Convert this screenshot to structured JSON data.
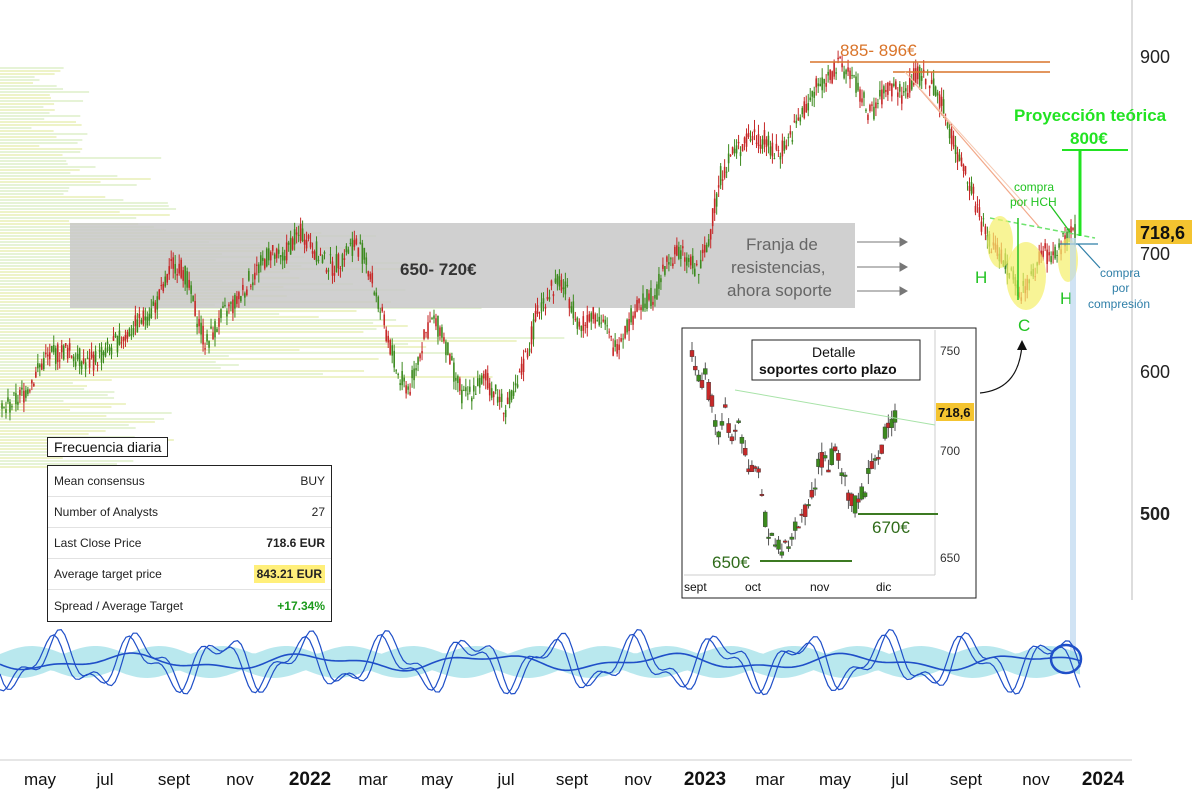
{
  "chart_data": {
    "type": "candlestick",
    "price_ticks": [
      "900",
      "700",
      "600",
      "500"
    ],
    "x_ticks": [
      "may",
      "jul",
      "sept",
      "nov",
      "2022",
      "mar",
      "may",
      "jul",
      "sept",
      "nov",
      "2023",
      "mar",
      "may",
      "jul",
      "sept",
      "nov",
      "2024"
    ],
    "last_price": "718,6",
    "resistance_zone": {
      "label": "650- 720€",
      "low": 650,
      "high": 720
    },
    "top_zone": {
      "label": "885- 896€",
      "low": 885,
      "high": 896
    },
    "zone_note": [
      "Franja de",
      "resistencias,",
      "ahora soporte"
    ],
    "projection": {
      "title": "Proyección teórica",
      "value_label": "800€",
      "value": 800
    },
    "pattern_labels": {
      "h_left": "H",
      "c": "C",
      "h_right": "H"
    },
    "buy_hch": [
      "compra",
      "por HCH"
    ],
    "buy_compression": [
      "compra",
      "por",
      "compresión"
    ],
    "price_path": [
      [
        0,
        535
      ],
      [
        2,
        555
      ],
      [
        4,
        590
      ],
      [
        6,
        600
      ],
      [
        8,
        585
      ],
      [
        10,
        600
      ],
      [
        12,
        620
      ],
      [
        14,
        640
      ],
      [
        15,
        660
      ],
      [
        16,
        690
      ],
      [
        17,
        680
      ],
      [
        18,
        640
      ],
      [
        19,
        605
      ],
      [
        20,
        625
      ],
      [
        21,
        640
      ],
      [
        22,
        650
      ],
      [
        23,
        670
      ],
      [
        24,
        685
      ],
      [
        25,
        700
      ],
      [
        26,
        690
      ],
      [
        27,
        710
      ],
      [
        28,
        720
      ],
      [
        29,
        705
      ],
      [
        30,
        690
      ],
      [
        31,
        685
      ],
      [
        32,
        700
      ],
      [
        33,
        710
      ],
      [
        34,
        690
      ],
      [
        35,
        650
      ],
      [
        36,
        610
      ],
      [
        37,
        570
      ],
      [
        38,
        560
      ],
      [
        39,
        600
      ],
      [
        40,
        630
      ],
      [
        41,
        620
      ],
      [
        42,
        580
      ],
      [
        43,
        550
      ],
      [
        44,
        560
      ],
      [
        45,
        570
      ],
      [
        46,
        555
      ],
      [
        47,
        540
      ],
      [
        48,
        560
      ],
      [
        49,
        600
      ],
      [
        50,
        640
      ],
      [
        51,
        660
      ],
      [
        52,
        670
      ],
      [
        53,
        650
      ],
      [
        54,
        620
      ],
      [
        55,
        640
      ],
      [
        56,
        630
      ],
      [
        57,
        600
      ],
      [
        58,
        620
      ],
      [
        59,
        640
      ],
      [
        60,
        650
      ],
      [
        61,
        660
      ],
      [
        62,
        690
      ],
      [
        63,
        700
      ],
      [
        64,
        690
      ],
      [
        65,
        680
      ],
      [
        66,
        720
      ],
      [
        67,
        780
      ],
      [
        68,
        800
      ],
      [
        69,
        810
      ],
      [
        70,
        820
      ],
      [
        71,
        815
      ],
      [
        72,
        800
      ],
      [
        73,
        810
      ],
      [
        74,
        830
      ],
      [
        75,
        850
      ],
      [
        76,
        870
      ],
      [
        77,
        880
      ],
      [
        78,
        890
      ],
      [
        79,
        885
      ],
      [
        80,
        860
      ],
      [
        81,
        840
      ],
      [
        82,
        860
      ],
      [
        83,
        870
      ],
      [
        84,
        860
      ],
      [
        85,
        880
      ],
      [
        86,
        880
      ],
      [
        87,
        870
      ],
      [
        88,
        840
      ],
      [
        89,
        800
      ],
      [
        90,
        780
      ],
      [
        91,
        740
      ],
      [
        92,
        710
      ],
      [
        93,
        700
      ],
      [
        94,
        680
      ],
      [
        95,
        660
      ],
      [
        96,
        675
      ],
      [
        97,
        700
      ],
      [
        98,
        695
      ],
      [
        99,
        712
      ],
      [
        100,
        718
      ]
    ]
  },
  "inset": {
    "title": "Detalle",
    "subtitle": "soportes corto plazo",
    "price_ticks": [
      "750",
      "700",
      "650"
    ],
    "last_price": "718,6",
    "x_ticks": [
      "sept",
      "oct",
      "nov",
      "dic"
    ],
    "support_low": {
      "label": "650€",
      "value": 650
    },
    "support_high": {
      "label": "670€",
      "value": 670
    },
    "price_path": [
      [
        0,
        745
      ],
      [
        1,
        735
      ],
      [
        2,
        738
      ],
      [
        3,
        725
      ],
      [
        4,
        712
      ],
      [
        5,
        722
      ],
      [
        6,
        705
      ],
      [
        7,
        715
      ],
      [
        8,
        700
      ],
      [
        9,
        690
      ],
      [
        10,
        695
      ],
      [
        11,
        670
      ],
      [
        12,
        660
      ],
      [
        13,
        655
      ],
      [
        14,
        652
      ],
      [
        15,
        658
      ],
      [
        16,
        665
      ],
      [
        17,
        672
      ],
      [
        18,
        680
      ],
      [
        19,
        690
      ],
      [
        20,
        700
      ],
      [
        21,
        695
      ],
      [
        22,
        705
      ],
      [
        23,
        690
      ],
      [
        24,
        680
      ],
      [
        25,
        675
      ],
      [
        26,
        680
      ],
      [
        27,
        690
      ],
      [
        28,
        700
      ],
      [
        29,
        705
      ],
      [
        30,
        712
      ],
      [
        31,
        718
      ]
    ]
  },
  "stats": {
    "title": "Frecuencia diaria",
    "rows": [
      {
        "label": "Mean consensus",
        "value": "BUY"
      },
      {
        "label": "Number of Analysts",
        "value": "27"
      },
      {
        "label": "Last Close Price",
        "value": "718.6 EUR"
      },
      {
        "label": "Average target price",
        "value": "843.21 EUR"
      },
      {
        "label": "Spread / Average Target",
        "value": "+17.34%"
      }
    ]
  },
  "colors": {
    "up": "#3c8a1e",
    "down": "#c62828",
    "zone": "#c8c8c8",
    "projection": "#22e322",
    "top_zone": "#e07b1a",
    "osc": "#1f4fc8",
    "osc_fill": "#7fd6e0",
    "last_price_badge": "#f4c430"
  }
}
